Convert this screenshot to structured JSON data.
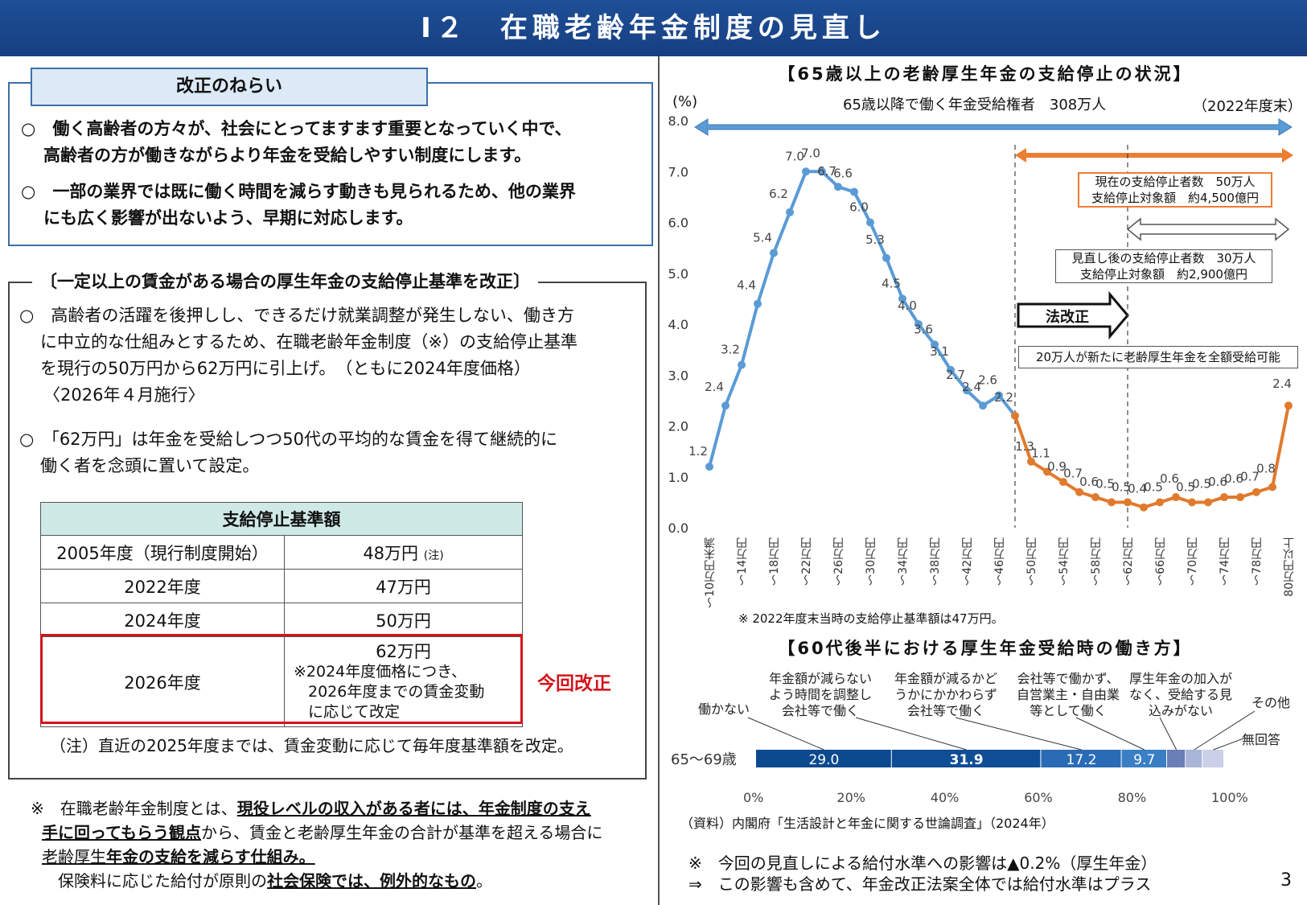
{
  "title": "Ⅰ２　在職老齢年金制度の見直し",
  "page_number": "3",
  "aims": {
    "heading": "改正のねらい",
    "items": [
      {
        "bullet": "○",
        "lines": [
          "　働く高齢者の方々が、社会にとってますます重要となっていく中で、",
          "高齢者の方が働きながらより年金を受給しやすい制度にします。"
        ]
      },
      {
        "bullet": "○",
        "lines": [
          "　一部の業界では既に働く時間を減らす動きも見られるため、他の業界",
          "にも広く影響が出ないよう、早期に対応します。"
        ]
      }
    ]
  },
  "reform": {
    "heading": "〔一定以上の賃金がある場合の厚生年金の支給停止基準を改正〕",
    "para1": [
      "○　高齢者の活躍を後押しし、できるだけ就業調整が発生しない、働き方",
      "に中立的な仕組みとするため、在職老齢年金制度（※）の支給停止基準",
      "を現行の50万円から62万円に引上げ。　（ともに2024年度価格）",
      "〈2026年４月施行〉"
    ],
    "para2": [
      "○　「62万円」は年金を受給しつつ50代の平均的な賃金を得て継続的に",
      "働く者を念頭に置いて設定。"
    ],
    "table": {
      "header": "支給停止基準額",
      "rows": [
        {
          "year": "2005年度（現行制度開始）",
          "amount": "48万円",
          "note": "(注)"
        },
        {
          "year": "2022年度",
          "amount": "47万円",
          "note": ""
        },
        {
          "year": "2024年度",
          "amount": "50万円",
          "note": ""
        }
      ],
      "last_row": {
        "year": "2026年度",
        "amount": "62万円",
        "detail": [
          "※2024年度価格につき、",
          "2026年度までの賃金変動",
          "に応じて改定"
        ]
      }
    },
    "highlight_label": "今回改正",
    "footnote": "（注）直近の2025年度までは、賃金変動に応じて毎年度基準額を改定。"
  },
  "definition": {
    "mark": "※",
    "l1_a": "　在職老齢年金制度とは、",
    "l1_b": "現役レベルの収入がある者には、年金制度の支え",
    "l2_a": "手に回ってもらう観点",
    "l2_b": "から、賃金と老齢厚生年金の合計が基準を超える場合に",
    "l3_a": "老齢厚生",
    "l3_b": "年金の支給を減らす仕組み。",
    "l4_a": "　保険料に応じた給付が原則の",
    "l4_b": "社会保険では、例外的なもの",
    "l4_c": "。"
  },
  "chart1": {
    "title": "【65歳以上の老齢厚生年金の支給停止の状況】",
    "unit_label": "(%)",
    "population_label": "65歳以降で働く年金受給権者　308万人",
    "population_note": "（2022年度末）",
    "current_box": [
      "現在の支給停止者数　50万人",
      "支給停止対象額　約4,500億円"
    ],
    "revised_box": [
      "見直し後の支給停止者数　30万人",
      "支給停止対象額　約2,900億円"
    ],
    "revision_arrow": "法改正",
    "new_recipients": "20万人が新たに老齢厚生年金を全額受給可能",
    "footnote": "※ 2022年度末当時の支給停止基準額は47万円。"
  },
  "chart_data": [
    {
      "type": "line",
      "ylabel": "(%)",
      "ylim": [
        0,
        8
      ],
      "yticks": [
        "0.0",
        "1.0",
        "2.0",
        "3.0",
        "4.0",
        "5.0",
        "6.0",
        "7.0",
        "8.0"
      ],
      "tick_labels": [
        "～10万円未満",
        "～14万円",
        "～18万円",
        "～22万円",
        "～26万円",
        "～30万円",
        "～34万円",
        "～38万円",
        "～42万円",
        "～46万円",
        "～50万円",
        "～54万円",
        "～58万円",
        "～62万円",
        "～66万円",
        "～70万円",
        "～74万円",
        "～78万円",
        "80万円以上"
      ],
      "values": [
        1.2,
        2.4,
        3.2,
        4.4,
        5.4,
        6.2,
        7.0,
        7.0,
        6.7,
        6.6,
        6.0,
        5.3,
        4.5,
        4.0,
        3.6,
        3.1,
        2.7,
        2.4,
        2.6,
        2.2,
        1.3,
        1.1,
        0.9,
        0.7,
        0.6,
        0.5,
        0.5,
        0.4,
        0.5,
        0.6,
        0.5,
        0.5,
        0.6,
        0.6,
        0.7,
        0.8,
        2.4
      ],
      "value_labels": [
        "1.2",
        "2.4",
        "3.2",
        "4.4",
        "5.4",
        "6.2",
        "7.0",
        "7.0",
        "6.7",
        "6.6",
        "6.0",
        "5.3",
        "4.5",
        "4.0",
        "3.6",
        "3.1",
        "2.7",
        "2.4",
        "2.6",
        "2.2",
        "1.3",
        "1.1",
        "0.9",
        "0.7",
        "0.6",
        "0.5",
        "0.5",
        "0.4",
        "0.5",
        "0.6",
        "0.5",
        "0.5",
        "0.6",
        "0.6",
        "0.7",
        "0.8",
        "2.4"
      ],
      "series_colors": {
        "before_current_threshold": "#5b9bd5",
        "after_current_threshold": "#e07a2d"
      }
    },
    {
      "type": "bar",
      "title": "【60代後半における厚生年金受給時の働き方】",
      "category": "65～69歳",
      "segments": [
        {
          "name": "働かない",
          "value": 29.0,
          "label": "29.0",
          "color": "#0c4a8f"
        },
        {
          "name": "年金額が減らないよう時間を調整し会社等で働く",
          "value": 31.9,
          "label": "31.9",
          "color": "#0f4d96"
        },
        {
          "name": "年金額が減るかどうかにかかわらず会社等で働く",
          "value": 17.2,
          "label": "17.2",
          "color": "#2a6bb5"
        },
        {
          "name": "会社等で働かず、自営業主・自由業等として働く",
          "value": 9.7,
          "label": "9.7",
          "color": "#3a7fc5"
        },
        {
          "name": "厚生年金の加入がなく、受給する見込みがない",
          "value": 4.0,
          "label": "",
          "color": "#6a7fb8"
        },
        {
          "name": "その他",
          "value": 3.6,
          "label": "",
          "color": "#a8b4d8"
        },
        {
          "name": "無回答",
          "value": 4.6,
          "label": "",
          "color": "#c9d0e8"
        }
      ],
      "xticks": [
        "0%",
        "20%",
        "40%",
        "60%",
        "80%",
        "100%"
      ]
    }
  ],
  "chart2": {
    "labels": {
      "no_work": "働かない",
      "adjust": [
        "年金額が減らない",
        "よう時間を調整し",
        "会社等で働く"
      ],
      "regardless": [
        "年金額が減るかど",
        "うかにかかわらず",
        "会社等で働く"
      ],
      "self": [
        "会社等で働かず、",
        "自営業主・自由業",
        "等として働く"
      ],
      "none": [
        "厚生年金の加入が",
        "なく、受給する見",
        "込みがない"
      ],
      "other": "その他",
      "noans": "無回答"
    },
    "source": "（資料）内閣府「生活設計と年金に関する世論調査」（2024年）"
  },
  "impact": {
    "l1": "※　今回の見直しによる給付水準への影響は▲0.2%（厚生年金）",
    "l2": "⇒　この影響も含めて、年金改正法案全体では給付水準はプラス"
  }
}
